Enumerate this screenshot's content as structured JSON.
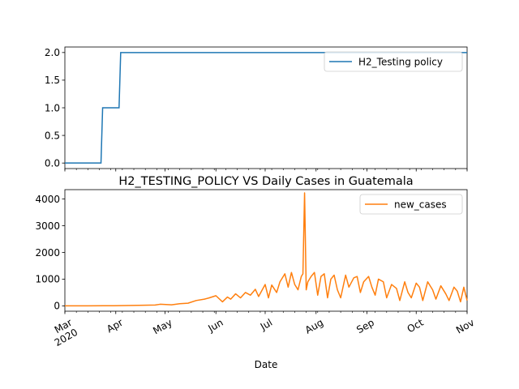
{
  "chart_data": [
    {
      "type": "line",
      "title": "",
      "xlabel": "",
      "ylabel": "",
      "ylim": [
        -0.1,
        2.1
      ],
      "yticks": [
        "0.0",
        "0.5",
        "1.0",
        "1.5",
        "2.0"
      ],
      "legend": "top-right",
      "grid": false,
      "series": [
        {
          "name": "H2_Testing policy",
          "color": "#1f77b4",
          "step_points": [
            [
              "2020-03-01",
              0
            ],
            [
              "2020-03-23",
              0
            ],
            [
              "2020-03-24",
              1
            ],
            [
              "2020-04-03",
              1
            ],
            [
              "2020-04-04",
              2
            ],
            [
              "2020-11-01",
              2
            ]
          ]
        }
      ]
    },
    {
      "type": "line",
      "title": "H2_TESTING_POLICY VS Daily Cases in Guatemala",
      "xlabel": "Date",
      "ylabel": "",
      "ylim": [
        -200,
        4350
      ],
      "yticks": [
        "0",
        "1000",
        "2000",
        "3000",
        "4000"
      ],
      "xticks": [
        "Mar\n2020",
        "Apr",
        "May",
        "Jun",
        "Jul",
        "Aug",
        "Sep",
        "Oct",
        "Nov"
      ],
      "legend": "top-right",
      "grid": false,
      "series": [
        {
          "name": "new_cases",
          "color": "#ff7f0e",
          "points": [
            [
              "2020-03-01",
              0
            ],
            [
              "2020-03-15",
              0
            ],
            [
              "2020-03-31",
              5
            ],
            [
              "2020-04-15",
              20
            ],
            [
              "2020-04-25",
              30
            ],
            [
              "2020-04-28",
              60
            ],
            [
              "2020-05-05",
              40
            ],
            [
              "2020-05-10",
              80
            ],
            [
              "2020-05-15",
              100
            ],
            [
              "2020-05-20",
              200
            ],
            [
              "2020-05-25",
              250
            ],
            [
              "2020-05-28",
              300
            ],
            [
              "2020-06-01",
              380
            ],
            [
              "2020-06-05",
              150
            ],
            [
              "2020-06-08",
              330
            ],
            [
              "2020-06-10",
              250
            ],
            [
              "2020-06-13",
              450
            ],
            [
              "2020-06-16",
              300
            ],
            [
              "2020-06-19",
              500
            ],
            [
              "2020-06-22",
              400
            ],
            [
              "2020-06-25",
              620
            ],
            [
              "2020-06-27",
              350
            ],
            [
              "2020-07-01",
              800
            ],
            [
              "2020-07-03",
              300
            ],
            [
              "2020-07-05",
              780
            ],
            [
              "2020-07-08",
              500
            ],
            [
              "2020-07-10",
              900
            ],
            [
              "2020-07-13",
              1200
            ],
            [
              "2020-07-15",
              700
            ],
            [
              "2020-07-17",
              1250
            ],
            [
              "2020-07-19",
              800
            ],
            [
              "2020-07-21",
              600
            ],
            [
              "2020-07-23",
              1100
            ],
            [
              "2020-07-24",
              1200
            ],
            [
              "2020-07-25",
              4230
            ],
            [
              "2020-07-26",
              600
            ],
            [
              "2020-07-27",
              900
            ],
            [
              "2020-07-29",
              1100
            ],
            [
              "2020-07-31",
              1250
            ],
            [
              "2020-08-02",
              400
            ],
            [
              "2020-08-04",
              1100
            ],
            [
              "2020-08-06",
              1200
            ],
            [
              "2020-08-08",
              300
            ],
            [
              "2020-08-10",
              1000
            ],
            [
              "2020-08-12",
              1150
            ],
            [
              "2020-08-14",
              600
            ],
            [
              "2020-08-16",
              300
            ],
            [
              "2020-08-19",
              1150
            ],
            [
              "2020-08-21",
              700
            ],
            [
              "2020-08-24",
              1050
            ],
            [
              "2020-08-26",
              1100
            ],
            [
              "2020-08-28",
              500
            ],
            [
              "2020-08-30",
              900
            ],
            [
              "2020-09-02",
              1100
            ],
            [
              "2020-09-04",
              700
            ],
            [
              "2020-09-06",
              400
            ],
            [
              "2020-09-08",
              1000
            ],
            [
              "2020-09-11",
              900
            ],
            [
              "2020-09-13",
              300
            ],
            [
              "2020-09-16",
              800
            ],
            [
              "2020-09-19",
              650
            ],
            [
              "2020-09-21",
              200
            ],
            [
              "2020-09-24",
              900
            ],
            [
              "2020-09-26",
              500
            ],
            [
              "2020-09-28",
              300
            ],
            [
              "2020-10-01",
              850
            ],
            [
              "2020-10-03",
              700
            ],
            [
              "2020-10-05",
              200
            ],
            [
              "2020-10-08",
              900
            ],
            [
              "2020-10-11",
              600
            ],
            [
              "2020-10-13",
              250
            ],
            [
              "2020-10-16",
              750
            ],
            [
              "2020-10-19",
              450
            ],
            [
              "2020-10-21",
              200
            ],
            [
              "2020-10-24",
              700
            ],
            [
              "2020-10-26",
              550
            ],
            [
              "2020-10-28",
              150
            ],
            [
              "2020-10-30",
              700
            ],
            [
              "2020-11-01",
              200
            ]
          ]
        }
      ]
    }
  ]
}
